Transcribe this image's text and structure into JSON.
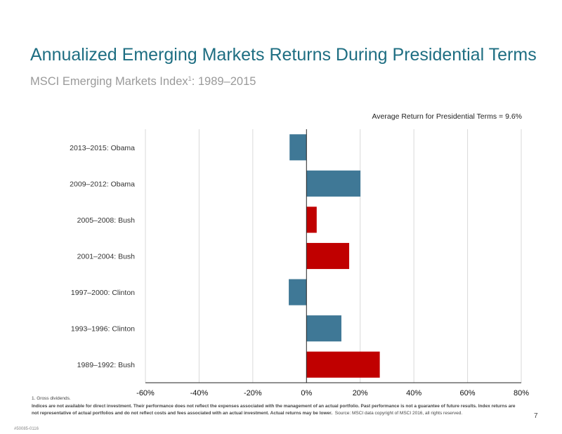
{
  "slide": {
    "title": "Annualized Emerging Markets Returns During Presidential Terms",
    "subtitle_main": "MSCI Emerging Markets Index",
    "subtitle_sup": "1",
    "subtitle_rest": ": 1989–2015",
    "average_note": "Average Return for Presidential Terms = 9.6%",
    "footnote": "1. Gross dividends.",
    "disclaimer": "Indices are not available for direct investment. Their performance does not reflect the expenses associated with the management of an actual portfolio. Past performance is not a guarantee of future results. Index returns are not representative of actual portfolios and do not reflect costs and fees associated with an actual investment. Actual returns may be lower.",
    "source": "Source: MSCI data copyright of MSCI 2016, all rights reserved.",
    "page_number": "7",
    "doc_code": "#50085-0116"
  },
  "colors": {
    "title": "#1e6e82",
    "democrat_bar": "#3f7896",
    "republican_bar": "#c00000",
    "gridline": "#d9d9d9"
  },
  "chart_data": {
    "type": "bar",
    "orientation": "horizontal",
    "categories": [
      "2013–2015: Obama",
      "2009–2012: Obama",
      "2005–2008: Bush",
      "2001–2004: Bush",
      "1997–2000: Clinton",
      "1993–1996: Clinton",
      "1989–1992: Bush"
    ],
    "values": [
      -6.3,
      20.1,
      3.8,
      15.9,
      -6.6,
      13.0,
      27.3
    ],
    "bar_colors": [
      "#3f7896",
      "#3f7896",
      "#c00000",
      "#c00000",
      "#3f7896",
      "#3f7896",
      "#c00000"
    ],
    "xlim": [
      -60,
      80
    ],
    "x_ticks": [
      -60,
      -40,
      -20,
      0,
      20,
      40,
      60,
      80
    ],
    "x_tick_labels": [
      "-60%",
      "-40%",
      "-20%",
      "0%",
      "20%",
      "40%",
      "60%",
      "80%"
    ],
    "grid": true,
    "average": 9.6
  }
}
